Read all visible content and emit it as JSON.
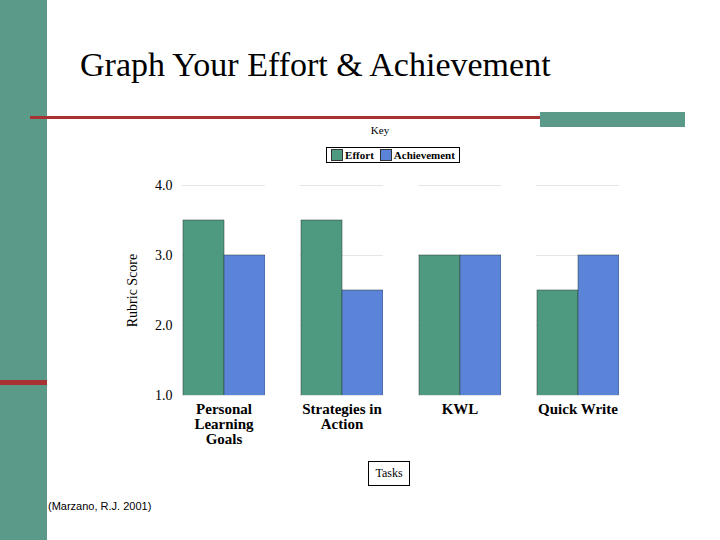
{
  "chart_data": {
    "type": "bar",
    "title": "Graph Your Effort & Achievement",
    "legend_title": "Key",
    "categories": [
      "Personal Learning Goals",
      "Strategies in Action",
      "KWL",
      "Quick Write"
    ],
    "series": [
      {
        "name": "Effort",
        "color": "#4e9a80",
        "values": [
          3.5,
          3.5,
          3,
          2.5
        ]
      },
      {
        "name": "Achievement",
        "color": "#5b84d8",
        "values": [
          3,
          2.5,
          3,
          3
        ]
      }
    ],
    "x_label": "Tasks",
    "y_label": "Rubric Score",
    "ylim": [
      1,
      4
    ],
    "yticks": [
      1,
      2,
      3,
      4
    ],
    "grid": true,
    "legend": "top",
    "caption": "(Marzano, R.J. 2001)"
  }
}
